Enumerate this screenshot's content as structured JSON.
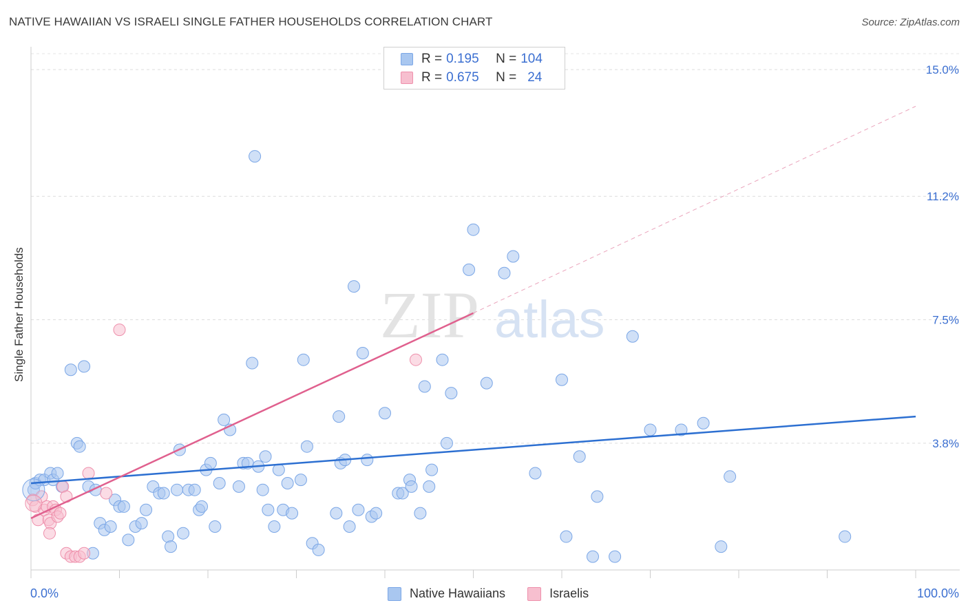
{
  "header": {
    "title": "NATIVE HAWAIIAN VS ISRAELI SINGLE FATHER HOUSEHOLDS CORRELATION CHART",
    "source": "Source: ZipAtlas.com"
  },
  "watermark": {
    "zip": "ZIP",
    "atlas": "atlas"
  },
  "legend": {
    "rows": [
      {
        "r_label": "R =",
        "r_value": "0.195",
        "n_label": "N =",
        "n_value": "104",
        "color": "#a9c7f0",
        "border": "#7aa6e6"
      },
      {
        "r_label": "R =",
        "r_value": "0.675",
        "n_label": "N =",
        "n_value": "24",
        "color": "#f7bfcf",
        "border": "#ee8fab"
      }
    ]
  },
  "bottom_legend": [
    {
      "label": "Native Hawaiians",
      "color": "#a9c7f0",
      "border": "#7aa6e6"
    },
    {
      "label": "Israelis",
      "color": "#f7bfcf",
      "border": "#ee8fab"
    }
  ],
  "chart_data": {
    "type": "scatter",
    "ylabel": "Single Father Households",
    "xlabel": "",
    "x_tick_labels": [
      "0.0%",
      "100.0%"
    ],
    "y_tick_labels": [
      "3.8%",
      "7.5%",
      "11.2%",
      "15.0%"
    ],
    "y_tick_values": [
      3.8,
      7.5,
      11.2,
      15.0
    ],
    "xlim": [
      0,
      100
    ],
    "ylim": [
      0,
      15.6
    ],
    "grid": "horizontal dashed",
    "legend_placement": "top-center",
    "series": [
      {
        "name": "Native Hawaiians",
        "color": "#a9c7f0",
        "stroke": "#7aa6e6",
        "trend_color": "#2c6fd1",
        "trend": {
          "x0": 0,
          "y0": 2.6,
          "x1": 100,
          "y1": 4.6
        },
        "points": [
          [
            0.3,
            2.4
          ],
          [
            0.5,
            2.6
          ],
          [
            1,
            2.7
          ],
          [
            1.5,
            2.7
          ],
          [
            2.2,
            2.9
          ],
          [
            2.5,
            2.7
          ],
          [
            3,
            2.9
          ],
          [
            3.5,
            2.5
          ],
          [
            4.5,
            6.0
          ],
          [
            5.2,
            3.8
          ],
          [
            5.5,
            3.7
          ],
          [
            6,
            6.1
          ],
          [
            6.5,
            2.5
          ],
          [
            7,
            0.5
          ],
          [
            7.3,
            2.4
          ],
          [
            7.8,
            1.4
          ],
          [
            8.3,
            1.2
          ],
          [
            9,
            1.3
          ],
          [
            9.5,
            2.1
          ],
          [
            10,
            1.9
          ],
          [
            10.5,
            1.9
          ],
          [
            11,
            0.9
          ],
          [
            11.8,
            1.3
          ],
          [
            12.5,
            1.4
          ],
          [
            13,
            1.8
          ],
          [
            13.8,
            2.5
          ],
          [
            14.5,
            2.3
          ],
          [
            15,
            2.3
          ],
          [
            15.5,
            1.0
          ],
          [
            15.8,
            0.7
          ],
          [
            16.5,
            2.4
          ],
          [
            16.8,
            3.6
          ],
          [
            17.2,
            1.1
          ],
          [
            17.8,
            2.4
          ],
          [
            18.5,
            2.4
          ],
          [
            19,
            1.8
          ],
          [
            19.3,
            1.9
          ],
          [
            19.8,
            3.0
          ],
          [
            20.3,
            3.2
          ],
          [
            20.8,
            1.3
          ],
          [
            21.3,
            2.6
          ],
          [
            21.8,
            4.5
          ],
          [
            22.5,
            4.2
          ],
          [
            23.5,
            2.5
          ],
          [
            24,
            3.2
          ],
          [
            24.5,
            3.2
          ],
          [
            25,
            6.2
          ],
          [
            25.7,
            3.1
          ],
          [
            25.3,
            12.4
          ],
          [
            26.2,
            2.4
          ],
          [
            26.5,
            3.4
          ],
          [
            26.8,
            1.8
          ],
          [
            27.5,
            1.3
          ],
          [
            28,
            3.0
          ],
          [
            28.5,
            1.8
          ],
          [
            29,
            2.6
          ],
          [
            29.5,
            1.7
          ],
          [
            30.5,
            2.7
          ],
          [
            30.8,
            6.3
          ],
          [
            31.2,
            3.7
          ],
          [
            31.8,
            0.8
          ],
          [
            32.5,
            0.6
          ],
          [
            34.5,
            1.7
          ],
          [
            34.8,
            4.6
          ],
          [
            35,
            3.2
          ],
          [
            35.5,
            3.3
          ],
          [
            36,
            1.3
          ],
          [
            36.5,
            8.5
          ],
          [
            37,
            1.8
          ],
          [
            37.5,
            6.5
          ],
          [
            38,
            3.3
          ],
          [
            38.5,
            1.6
          ],
          [
            39,
            1.7
          ],
          [
            40,
            4.7
          ],
          [
            41.5,
            2.3
          ],
          [
            42,
            2.3
          ],
          [
            42.8,
            2.7
          ],
          [
            43,
            2.5
          ],
          [
            44,
            1.7
          ],
          [
            44.5,
            5.5
          ],
          [
            45,
            2.5
          ],
          [
            45.3,
            3.0
          ],
          [
            46.5,
            6.3
          ],
          [
            47,
            3.8
          ],
          [
            47.5,
            5.3
          ],
          [
            49.5,
            9.0
          ],
          [
            50,
            10.2
          ],
          [
            51.5,
            5.6
          ],
          [
            53.5,
            8.9
          ],
          [
            54.5,
            9.4
          ],
          [
            57,
            2.9
          ],
          [
            60,
            5.7
          ],
          [
            60.5,
            1.0
          ],
          [
            62,
            3.4
          ],
          [
            63.5,
            0.4
          ],
          [
            64,
            2.2
          ],
          [
            66,
            0.4
          ],
          [
            68,
            7.0
          ],
          [
            70,
            4.2
          ],
          [
            73.5,
            4.2
          ],
          [
            76,
            4.4
          ],
          [
            78,
            0.7
          ],
          [
            79,
            2.8
          ],
          [
            92,
            1.0
          ]
        ]
      },
      {
        "name": "Israelis",
        "color": "#f7bfcf",
        "stroke": "#ee8fab",
        "trend_color": "#e0608e",
        "trend": {
          "x0": 0,
          "y0": 1.55,
          "x1": 50,
          "y1": 7.7
        },
        "trend_extension": {
          "x0": 50,
          "y0": 7.7,
          "x1": 100,
          "y1": 13.9
        },
        "points": [
          [
            0.2,
            2.1
          ],
          [
            0.5,
            1.9
          ],
          [
            0.8,
            1.5
          ],
          [
            1.2,
            2.2
          ],
          [
            1.5,
            1.8
          ],
          [
            1.8,
            1.9
          ],
          [
            2,
            1.5
          ],
          [
            2.2,
            1.4
          ],
          [
            2.5,
            1.9
          ],
          [
            2.8,
            1.8
          ],
          [
            3,
            1.6
          ],
          [
            3.3,
            1.7
          ],
          [
            3.6,
            2.5
          ],
          [
            4,
            2.2
          ],
          [
            4,
            0.5
          ],
          [
            4.5,
            0.4
          ],
          [
            5,
            0.4
          ],
          [
            5.5,
            0.4
          ],
          [
            6,
            0.5
          ],
          [
            6.5,
            2.9
          ],
          [
            8.5,
            2.3
          ],
          [
            10,
            7.2
          ],
          [
            43.5,
            6.3
          ],
          [
            2.1,
            1.1
          ]
        ]
      }
    ]
  }
}
